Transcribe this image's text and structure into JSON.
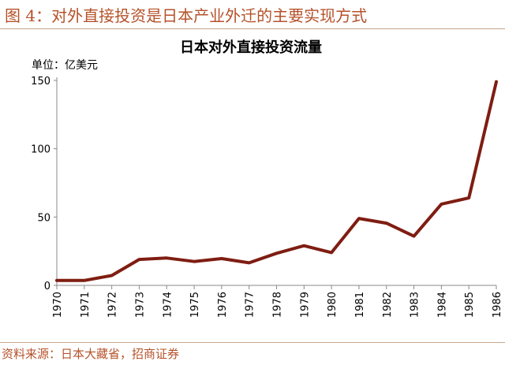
{
  "figure": {
    "title": "图 4：对外直接投资是日本产业外迁的主要实现方式",
    "source": "资料来源：日本大藏省，招商证券"
  },
  "chart_data": {
    "type": "line",
    "title": "日本对外直接投资流量",
    "ylabel": "单位：亿美元",
    "xlabel": "",
    "x": [
      "1970",
      "1971",
      "1972",
      "1973",
      "1974",
      "1975",
      "1976",
      "1977",
      "1978",
      "1979",
      "1980",
      "1981",
      "1982",
      "1983",
      "1984",
      "1985",
      "1986"
    ],
    "series": [
      {
        "values": [
          3.6,
          3.6,
          7.2,
          19,
          20,
          17.5,
          19.6,
          16.5,
          23.5,
          29,
          24,
          49,
          45.5,
          36,
          59.5,
          64,
          149
        ]
      }
    ],
    "ylim": [
      0,
      150
    ],
    "yticks": [
      "0",
      "50",
      "100",
      "150"
    ],
    "line_color": "#7f1d12",
    "grid": false,
    "legend": "none"
  }
}
